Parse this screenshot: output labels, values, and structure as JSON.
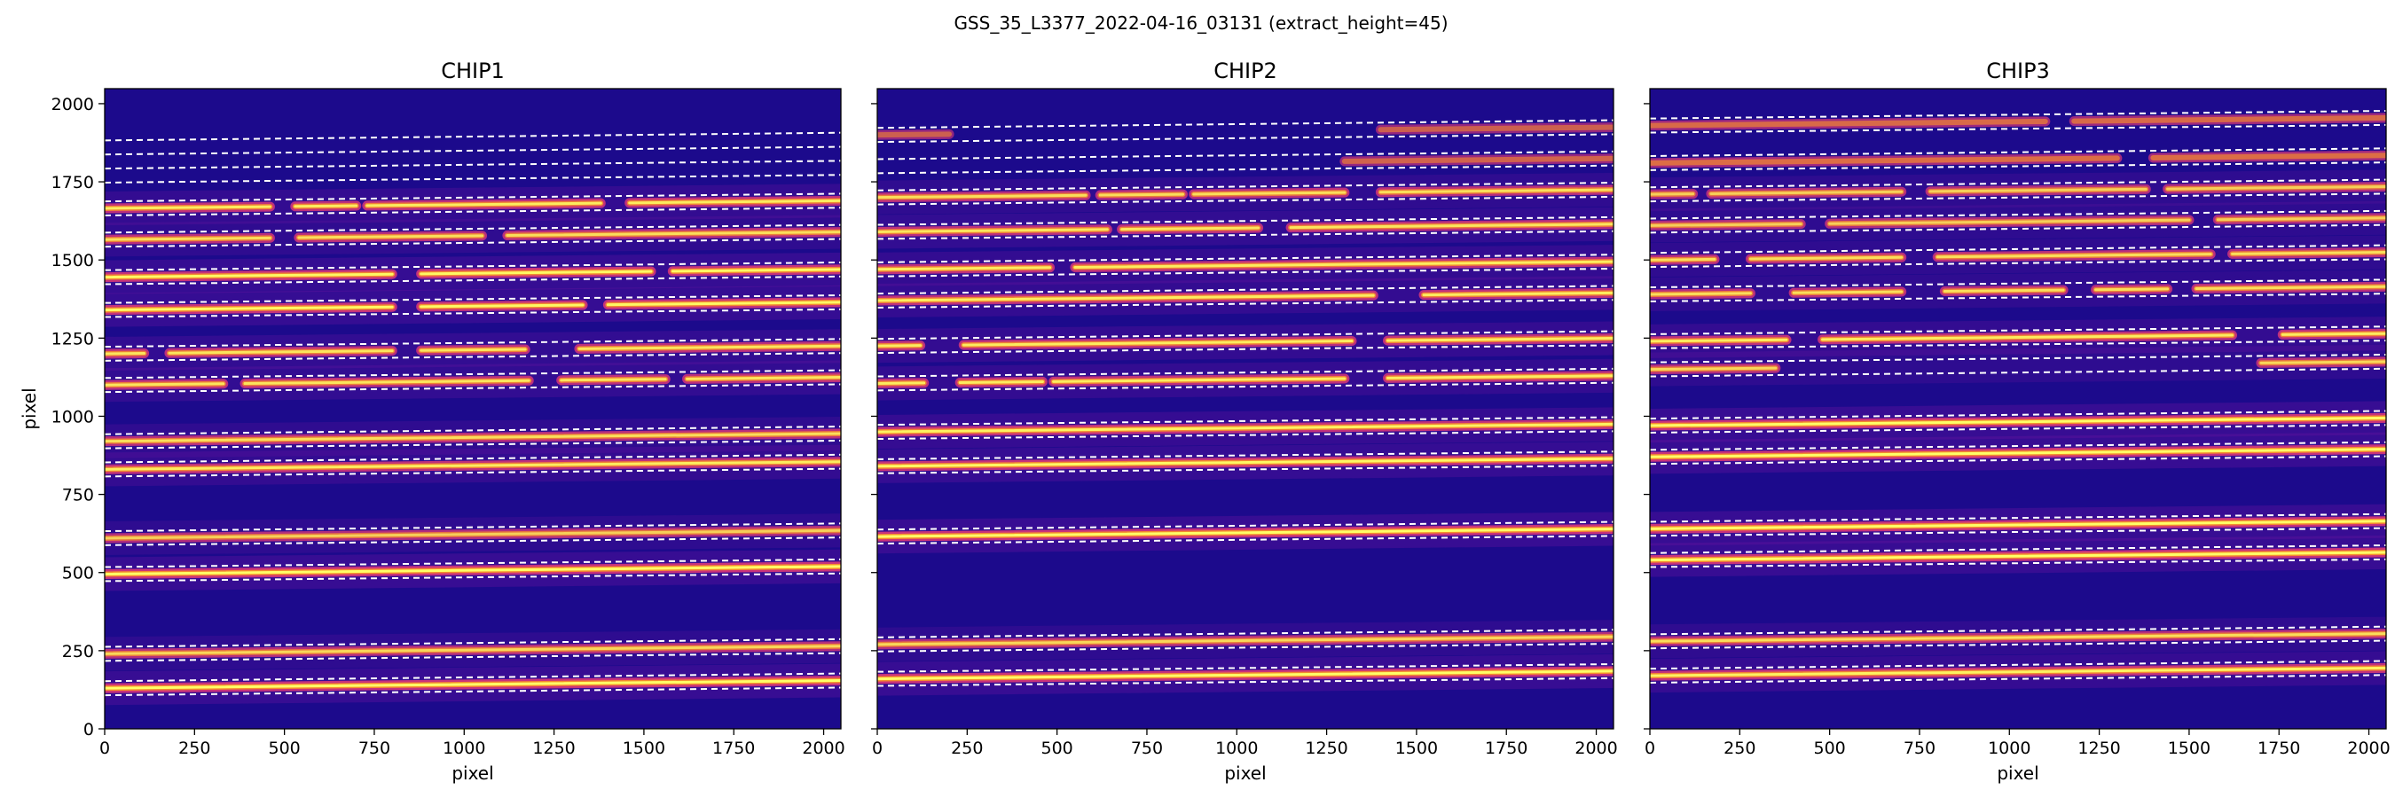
{
  "figure": {
    "suptitle": "GSS_35_L3377_2022-04-16_03131  (extract_height=45)",
    "colormap": "plasma",
    "background_color": "#1c0a8c",
    "trace_color": "#ffff66",
    "boundary_line_color": "#ffffff"
  },
  "chart_data": [
    {
      "type": "heatmap",
      "title": "CHIP1",
      "xlabel": "pixel",
      "ylabel": "pixel",
      "xlim": [
        0,
        2048
      ],
      "ylim": [
        0,
        2048
      ],
      "xticks": [
        0,
        250,
        500,
        750,
        1000,
        1250,
        1500,
        1750,
        2000
      ],
      "yticks": [
        0,
        250,
        500,
        750,
        1000,
        1250,
        1500,
        1750,
        2000
      ],
      "extract_height": 45,
      "orders": [
        {
          "center": 130,
          "slope": 0.012,
          "strength": 1.0,
          "segments": [
            [
              0,
              2048
            ]
          ]
        },
        {
          "center": 240,
          "slope": 0.012,
          "strength": 0.7,
          "segments": [
            [
              0,
              2048
            ]
          ]
        },
        {
          "center": 495,
          "slope": 0.012,
          "strength": 1.0,
          "segments": [
            [
              0,
              2048
            ]
          ]
        },
        {
          "center": 610,
          "slope": 0.012,
          "strength": 0.65,
          "segments": [
            [
              0,
              2048
            ]
          ]
        },
        {
          "center": 830,
          "slope": 0.012,
          "strength": 0.85,
          "segments": [
            [
              0,
              2048
            ]
          ]
        },
        {
          "center": 920,
          "slope": 0.012,
          "strength": 0.75,
          "segments": [
            [
              0,
              2048
            ]
          ]
        },
        {
          "center": 1100,
          "slope": 0.012,
          "strength": 0.8,
          "segments": [
            [
              0,
              330
            ],
            [
              390,
              1180
            ],
            [
              1270,
              1560
            ],
            [
              1620,
              2048
            ]
          ]
        },
        {
          "center": 1200,
          "slope": 0.012,
          "strength": 0.8,
          "segments": [
            [
              0,
              110
            ],
            [
              180,
              800
            ],
            [
              880,
              1170
            ],
            [
              1320,
              2048
            ]
          ]
        },
        {
          "center": 1340,
          "slope": 0.012,
          "strength": 0.95,
          "segments": [
            [
              0,
              800
            ],
            [
              880,
              1330
            ],
            [
              1400,
              2048
            ]
          ]
        },
        {
          "center": 1445,
          "slope": 0.012,
          "strength": 0.95,
          "segments": [
            [
              0,
              800
            ],
            [
              880,
              1520
            ],
            [
              1580,
              2048
            ]
          ]
        },
        {
          "center": 1565,
          "slope": 0.012,
          "strength": 0.75,
          "segments": [
            [
              0,
              460
            ],
            [
              540,
              1050
            ],
            [
              1120,
              2048
            ]
          ]
        },
        {
          "center": 1665,
          "slope": 0.012,
          "strength": 0.85,
          "segments": [
            [
              0,
              460
            ],
            [
              530,
              700
            ],
            [
              730,
              1380
            ],
            [
              1460,
              2048
            ]
          ]
        },
        {
          "center": 1770,
          "slope": 0.012,
          "strength": 0.0,
          "segments": []
        },
        {
          "center": 1860,
          "slope": 0.012,
          "strength": 0.0,
          "segments": []
        }
      ]
    },
    {
      "type": "heatmap",
      "title": "CHIP2",
      "xlabel": "pixel",
      "ylabel": "",
      "xlim": [
        0,
        2048
      ],
      "ylim": [
        0,
        2048
      ],
      "xticks": [
        0,
        250,
        500,
        750,
        1000,
        1250,
        1500,
        1750,
        2000
      ],
      "yticks": [
        0,
        250,
        500,
        750,
        1000,
        1250,
        1500,
        1750,
        2000
      ],
      "extract_height": 45,
      "orders": [
        {
          "center": 160,
          "slope": 0.012,
          "strength": 1.0,
          "segments": [
            [
              0,
              2048
            ]
          ]
        },
        {
          "center": 270,
          "slope": 0.012,
          "strength": 0.7,
          "segments": [
            [
              0,
              2048
            ]
          ]
        },
        {
          "center": 615,
          "slope": 0.012,
          "strength": 1.0,
          "segments": [
            [
              0,
              2048
            ]
          ]
        },
        {
          "center": 840,
          "slope": 0.012,
          "strength": 0.95,
          "segments": [
            [
              0,
              2048
            ]
          ]
        },
        {
          "center": 950,
          "slope": 0.012,
          "strength": 0.9,
          "segments": [
            [
              0,
              2048
            ]
          ]
        },
        {
          "center": 1105,
          "slope": 0.012,
          "strength": 0.85,
          "segments": [
            [
              0,
              130
            ],
            [
              230,
              460
            ],
            [
              490,
              1300
            ],
            [
              1420,
              2048
            ]
          ]
        },
        {
          "center": 1225,
          "slope": 0.012,
          "strength": 0.85,
          "segments": [
            [
              0,
              120
            ],
            [
              240,
              1320
            ],
            [
              1420,
              2048
            ]
          ]
        },
        {
          "center": 1370,
          "slope": 0.012,
          "strength": 0.85,
          "segments": [
            [
              0,
              1380
            ],
            [
              1520,
              2048
            ]
          ]
        },
        {
          "center": 1470,
          "slope": 0.012,
          "strength": 0.85,
          "segments": [
            [
              0,
              480
            ],
            [
              550,
              2048
            ]
          ]
        },
        {
          "center": 1590,
          "slope": 0.012,
          "strength": 0.8,
          "segments": [
            [
              0,
              640
            ],
            [
              680,
              1060
            ],
            [
              1150,
              2048
            ]
          ]
        },
        {
          "center": 1700,
          "slope": 0.012,
          "strength": 0.75,
          "segments": [
            [
              0,
              580
            ],
            [
              620,
              850
            ],
            [
              880,
              1300
            ],
            [
              1400,
              2048
            ]
          ]
        },
        {
          "center": 1800,
          "slope": 0.012,
          "strength": 0.35,
          "segments": [
            [
              1300,
              2048
            ]
          ]
        },
        {
          "center": 1900,
          "slope": 0.012,
          "strength": 0.3,
          "segments": [
            [
              0,
              200
            ],
            [
              1400,
              2048
            ]
          ]
        }
      ]
    },
    {
      "type": "heatmap",
      "title": "CHIP3",
      "xlabel": "pixel",
      "ylabel": "",
      "xlim": [
        0,
        2048
      ],
      "ylim": [
        0,
        2048
      ],
      "xticks": [
        0,
        250,
        500,
        750,
        1000,
        1250,
        1500,
        1750,
        2000
      ],
      "yticks": [
        0,
        250,
        500,
        750,
        1000,
        1250,
        1500,
        1750,
        2000
      ],
      "extract_height": 45,
      "orders": [
        {
          "center": 170,
          "slope": 0.012,
          "strength": 0.9,
          "segments": [
            [
              0,
              2048
            ]
          ]
        },
        {
          "center": 280,
          "slope": 0.012,
          "strength": 0.75,
          "segments": [
            [
              0,
              2048
            ]
          ]
        },
        {
          "center": 540,
          "slope": 0.012,
          "strength": 1.0,
          "segments": [
            [
              0,
              2048
            ]
          ]
        },
        {
          "center": 640,
          "slope": 0.012,
          "strength": 1.0,
          "segments": [
            [
              0,
              2048
            ]
          ]
        },
        {
          "center": 870,
          "slope": 0.012,
          "strength": 1.0,
          "segments": [
            [
              0,
              2048
            ]
          ]
        },
        {
          "center": 970,
          "slope": 0.012,
          "strength": 1.0,
          "segments": [
            [
              0,
              2048
            ]
          ]
        },
        {
          "center": 1150,
          "slope": 0.012,
          "strength": 0.7,
          "segments": [
            [
              0,
              350
            ],
            [
              1700,
              2048
            ]
          ]
        },
        {
          "center": 1240,
          "slope": 0.012,
          "strength": 0.85,
          "segments": [
            [
              0,
              380
            ],
            [
              480,
              1620
            ],
            [
              1760,
              2048
            ]
          ]
        },
        {
          "center": 1390,
          "slope": 0.012,
          "strength": 0.75,
          "segments": [
            [
              0,
              280
            ],
            [
              400,
              700
            ],
            [
              820,
              1150
            ],
            [
              1240,
              1440
            ],
            [
              1520,
              2048
            ]
          ]
        },
        {
          "center": 1500,
          "slope": 0.012,
          "strength": 0.75,
          "segments": [
            [
              0,
              180
            ],
            [
              280,
              700
            ],
            [
              800,
              1560
            ],
            [
              1620,
              2048
            ]
          ]
        },
        {
          "center": 1610,
          "slope": 0.012,
          "strength": 0.65,
          "segments": [
            [
              0,
              420
            ],
            [
              500,
              1500
            ],
            [
              1580,
              2048
            ]
          ]
        },
        {
          "center": 1710,
          "slope": 0.012,
          "strength": 0.65,
          "segments": [
            [
              0,
              120
            ],
            [
              170,
              700
            ],
            [
              780,
              1380
            ],
            [
              1440,
              2048
            ]
          ]
        },
        {
          "center": 1810,
          "slope": 0.012,
          "strength": 0.5,
          "segments": [
            [
              0,
              1300
            ],
            [
              1400,
              2048
            ]
          ]
        },
        {
          "center": 1930,
          "slope": 0.012,
          "strength": 0.45,
          "segments": [
            [
              0,
              1100
            ],
            [
              1180,
              2048
            ]
          ]
        }
      ]
    }
  ]
}
